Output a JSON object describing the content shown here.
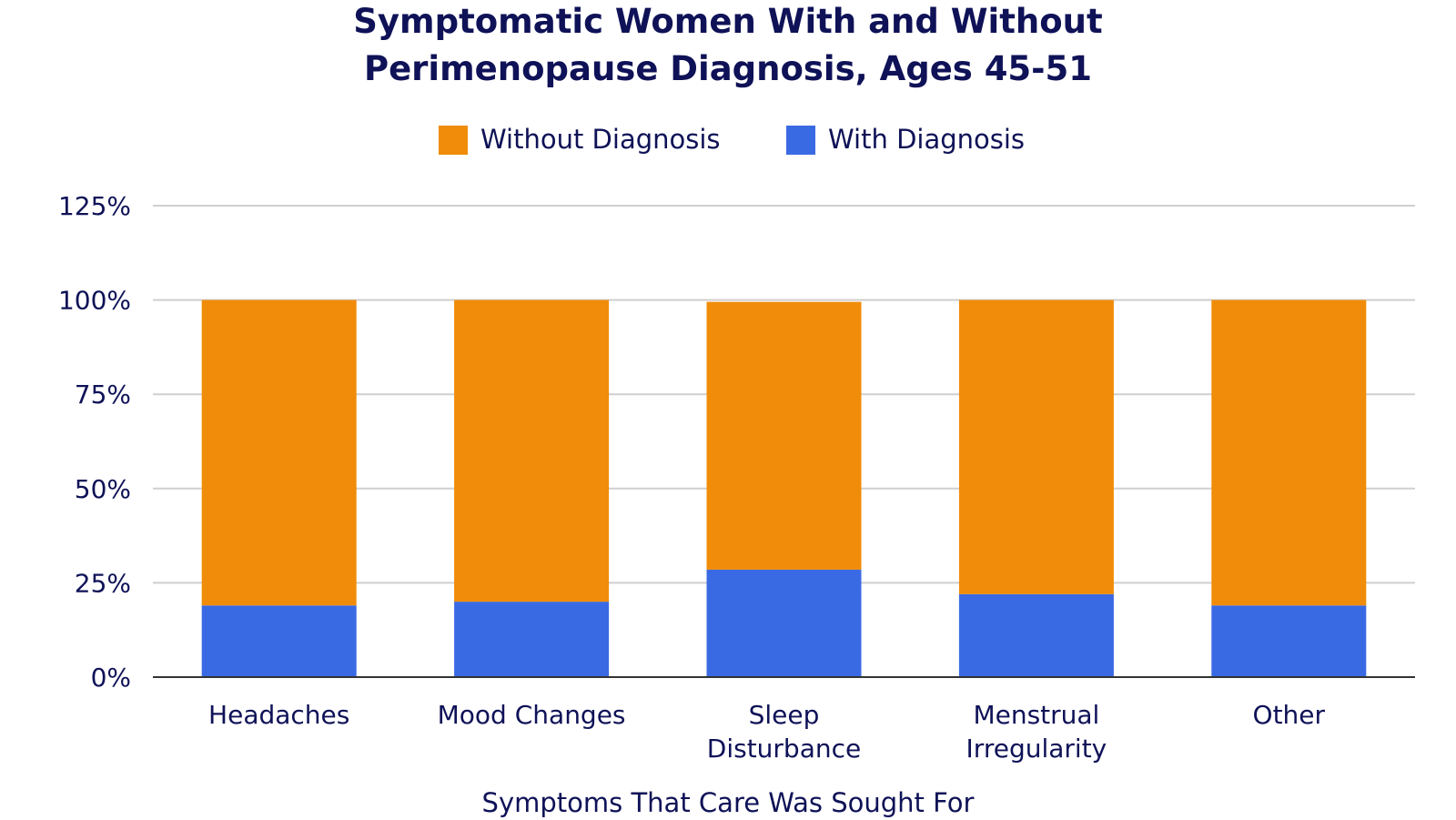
{
  "chart_data": {
    "type": "bar",
    "stacked": true,
    "title": [
      "Symptomatic Women With and Without",
      "Perimenopause Diagnosis, Ages 45-51"
    ],
    "xlabel": "Symptoms That Care Was Sought For",
    "ylabel": "",
    "ylim": [
      0,
      125
    ],
    "yticks": [
      "0%",
      "25%",
      "50%",
      "75%",
      "100%",
      "125%"
    ],
    "ytick_values": [
      0,
      25,
      50,
      75,
      100,
      125
    ],
    "grid": true,
    "legend_position": "top",
    "categories": [
      [
        "Headaches"
      ],
      [
        "Mood Changes"
      ],
      [
        "Sleep",
        "Disturbance"
      ],
      [
        "Menstrual",
        "Irregularity"
      ],
      [
        "Other"
      ]
    ],
    "series": [
      {
        "name": "With Diagnosis",
        "color": "#3a6ae3",
        "values": [
          19,
          20,
          28.5,
          22,
          19
        ]
      },
      {
        "name": "Without Diagnosis",
        "color": "#f08c09",
        "values": [
          81,
          80,
          71,
          78,
          81
        ]
      }
    ],
    "legend_order": [
      "Without Diagnosis",
      "With Diagnosis"
    ]
  }
}
